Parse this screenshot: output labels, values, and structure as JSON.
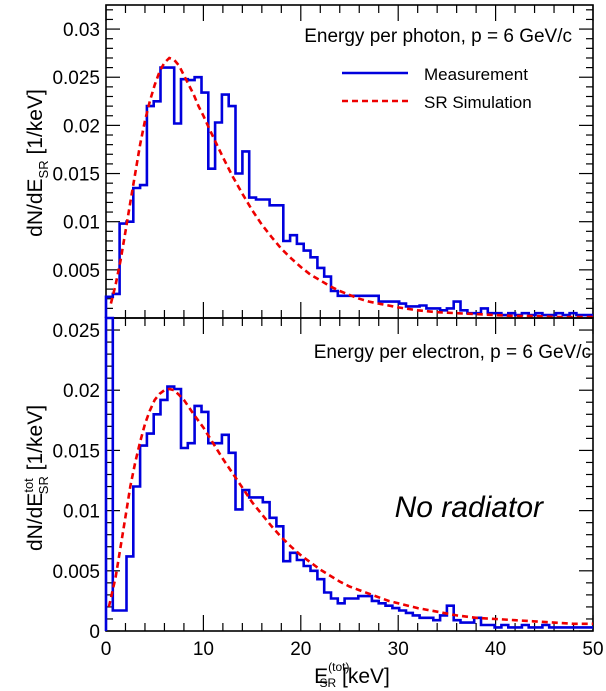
{
  "chart_data": [
    {
      "type": "line",
      "panel": "top",
      "annotation": "Energy per photon, p = 6 GeV/c",
      "ylabel_main": "dN/dE",
      "ylabel_sub": "SR",
      "ylabel_unit": " [1/keV]",
      "ylim": [
        0,
        0.0325
      ],
      "xlim": [
        0,
        50
      ],
      "yticks": [
        {
          "value": 0.005,
          "label": "0.005"
        },
        {
          "value": 0.01,
          "label": "0.01"
        },
        {
          "value": 0.015,
          "label": "0.015"
        },
        {
          "value": 0.02,
          "label": "0.02"
        },
        {
          "value": 0.025,
          "label": "0.025"
        },
        {
          "value": 0.03,
          "label": "0.03"
        }
      ],
      "legend": {
        "placement": "top-right",
        "entries": [
          {
            "label": "Measurement",
            "color": "#0000dd",
            "style": "solid"
          },
          {
            "label": "SR Simulation",
            "color": "#ee0000",
            "style": "dashed"
          }
        ]
      },
      "series": [
        {
          "name": "Measurement",
          "style": "step",
          "color": "#0000dd",
          "edges": [
            0,
            0.7,
            1.4,
            2.1,
            2.8,
            3.5,
            4.2,
            4.9,
            5.6,
            6.3,
            7,
            7.7,
            8.4,
            9.1,
            9.8,
            10.5,
            11.2,
            11.9,
            12.6,
            13.3,
            14,
            14.7,
            15.4,
            16.1,
            16.8,
            17.5,
            18.2,
            18.9,
            19.6,
            20.3,
            21,
            21.7,
            22.4,
            23.1,
            23.8,
            24.5,
            25.2,
            25.9,
            26.6,
            27.3,
            28,
            28.7,
            29.4,
            30.1,
            30.8,
            31.5,
            32.2,
            32.9,
            33.6,
            34.3,
            35,
            35.7,
            36.4,
            37.1,
            37.8,
            38.5,
            39.2,
            39.9,
            40.6,
            41.3,
            42,
            42.7,
            43.4,
            44.1,
            44.8,
            45.5,
            46.2,
            46.9,
            47.6,
            48.3,
            49,
            50
          ],
          "values": [
            0.0022,
            0.0025,
            0.0098,
            0.01,
            0.0135,
            0.0138,
            0.022,
            0.0225,
            0.026,
            0.026,
            0.0202,
            0.0248,
            0.0247,
            0.025,
            0.0234,
            0.0155,
            0.0203,
            0.0232,
            0.022,
            0.015,
            0.0173,
            0.0125,
            0.0123,
            0.0123,
            0.0117,
            0.0117,
            0.008,
            0.0086,
            0.0077,
            0.007,
            0.0063,
            0.0052,
            0.0043,
            0.0028,
            0.0023,
            0.0023,
            0.0023,
            0.0023,
            0.0023,
            0.0023,
            0.0017,
            0.0017,
            0.0017,
            0.0015,
            0.0012,
            0.0012,
            0.0013,
            0.001,
            0.001,
            0.0008,
            0.001,
            0.0017,
            0.0008,
            0.0005,
            0.0005,
            0.001,
            0.0005,
            0.0005,
            0.0003,
            0.0005,
            0.0003,
            0.0005,
            0.0003,
            0.0005,
            0.0003,
            0.0003,
            0.0005,
            0.0003,
            0.0005,
            0.0003,
            0.0003
          ]
        },
        {
          "name": "SR Simulation",
          "style": "dashed",
          "color": "#ee0000",
          "x": [
            0.5,
            1,
            1.5,
            2,
            2.5,
            3,
            3.5,
            4,
            4.5,
            5,
            5.5,
            6,
            6.5,
            7,
            7.5,
            8,
            8.5,
            9,
            9.5,
            10,
            11,
            12,
            13,
            14,
            15,
            16,
            17,
            18,
            19,
            20,
            21,
            22,
            23,
            24,
            25,
            26,
            27,
            28,
            29,
            30,
            32,
            34,
            36,
            38,
            40,
            42,
            44,
            46,
            48,
            50
          ],
          "y": [
            0.0015,
            0.0035,
            0.006,
            0.009,
            0.012,
            0.015,
            0.018,
            0.0205,
            0.0225,
            0.0242,
            0.0256,
            0.0265,
            0.027,
            0.0268,
            0.0262,
            0.0252,
            0.0242,
            0.0232,
            0.022,
            0.021,
            0.0188,
            0.0167,
            0.0147,
            0.0129,
            0.0112,
            0.0097,
            0.0084,
            0.0072,
            0.0062,
            0.0053,
            0.0045,
            0.0039,
            0.0033,
            0.0028,
            0.0024,
            0.002,
            0.0017,
            0.0015,
            0.0013,
            0.0011,
            0.0008,
            0.0006,
            0.0005,
            0.0004,
            0.0003,
            0.0002,
            0.0002,
            0.0001,
            0.0001,
            0.0001
          ]
        }
      ]
    },
    {
      "type": "line",
      "panel": "bottom",
      "annotation": "Energy per electron, p = 6 GeV/c",
      "annotation2": "No radiator",
      "ylabel_main": "dN/dE",
      "ylabel_sup": "tot",
      "ylabel_sub": "SR",
      "ylabel_unit": " [1/keV]",
      "xlabel_main": "E",
      "xlabel_sup": "(tot)",
      "xlabel_sub": "SR",
      "xlabel_unit": " [keV]",
      "ylim": [
        0,
        0.026
      ],
      "xlim": [
        0,
        50
      ],
      "yticks": [
        {
          "value": 0,
          "label": "0"
        },
        {
          "value": 0.005,
          "label": "0.005"
        },
        {
          "value": 0.01,
          "label": "0.01"
        },
        {
          "value": 0.015,
          "label": "0.015"
        },
        {
          "value": 0.02,
          "label": "0.02"
        },
        {
          "value": 0.025,
          "label": "0.025"
        }
      ],
      "xticks": [
        {
          "value": 0,
          "label": "0"
        },
        {
          "value": 10,
          "label": "10"
        },
        {
          "value": 20,
          "label": "20"
        },
        {
          "value": 30,
          "label": "30"
        },
        {
          "value": 40,
          "label": "40"
        },
        {
          "value": 50,
          "label": "50"
        }
      ],
      "series": [
        {
          "name": "Measurement",
          "style": "step",
          "color": "#0000dd",
          "edges": [
            0,
            0.7,
            1.4,
            2.1,
            2.8,
            3.5,
            4.2,
            4.9,
            5.6,
            6.3,
            7,
            7.7,
            8.4,
            9.1,
            9.8,
            10.5,
            11.2,
            11.9,
            12.6,
            13.3,
            14,
            14.7,
            15.4,
            16.1,
            16.8,
            17.5,
            18.2,
            18.9,
            19.6,
            20.3,
            21,
            21.7,
            22.4,
            23.1,
            23.8,
            24.5,
            25.2,
            25.9,
            26.6,
            27.3,
            28,
            28.7,
            29.4,
            30.1,
            30.8,
            31.5,
            32.2,
            32.9,
            33.6,
            34.3,
            35,
            35.7,
            36.4,
            37.1,
            37.8,
            38.5,
            39.2,
            39.9,
            40.6,
            41.3,
            42,
            42.7,
            43.4,
            44.1,
            44.8,
            45.5,
            46.2,
            46.9,
            47.6,
            48.3,
            49,
            50
          ],
          "values": [
            0.026,
            0.0017,
            0.0017,
            0.0062,
            0.012,
            0.0154,
            0.0164,
            0.018,
            0.0192,
            0.0203,
            0.0201,
            0.0152,
            0.0156,
            0.0187,
            0.0182,
            0.0156,
            0.0156,
            0.0163,
            0.0148,
            0.0101,
            0.0117,
            0.0111,
            0.0111,
            0.0107,
            0.0094,
            0.0087,
            0.0058,
            0.0065,
            0.0059,
            0.0054,
            0.005,
            0.0043,
            0.0032,
            0.0027,
            0.0023,
            0.0027,
            0.0027,
            0.0029,
            0.0029,
            0.0025,
            0.0023,
            0.0021,
            0.0019,
            0.0017,
            0.0015,
            0.0013,
            0.0011,
            0.0011,
            0.0009,
            0.0013,
            0.0021,
            0.0009,
            0.0007,
            0.0007,
            0.0011,
            0.0005,
            0.0005,
            0.0003,
            0.0005,
            0.0003,
            0.0003,
            0.0005,
            0.0003,
            0.0003,
            0.0005,
            0.0003,
            0.0003,
            0.0003,
            0.0003,
            0.0003,
            0.0003
          ]
        },
        {
          "name": "SR Simulation",
          "style": "dashed",
          "color": "#ee0000",
          "x": [
            0.3,
            1,
            1.5,
            2,
            2.5,
            3,
            3.5,
            4,
            4.5,
            5,
            5.5,
            6,
            6.5,
            7,
            7.5,
            8,
            8.5,
            9,
            10,
            11,
            12,
            13,
            14,
            15,
            16,
            17,
            18,
            19,
            20,
            21,
            22,
            23,
            24,
            25,
            26,
            27,
            28,
            29,
            30,
            32,
            34,
            36,
            38,
            40,
            42,
            44,
            46,
            48,
            50
          ],
          "y": [
            0.002,
            0.0045,
            0.007,
            0.0095,
            0.012,
            0.014,
            0.0157,
            0.0172,
            0.0183,
            0.0192,
            0.0197,
            0.02,
            0.0201,
            0.02,
            0.0196,
            0.0192,
            0.0186,
            0.018,
            0.0169,
            0.0156,
            0.0143,
            0.0131,
            0.0119,
            0.0107,
            0.0097,
            0.0087,
            0.0078,
            0.007,
            0.0063,
            0.0057,
            0.0051,
            0.0046,
            0.0041,
            0.0037,
            0.0034,
            0.0031,
            0.0028,
            0.0025,
            0.0023,
            0.0019,
            0.0016,
            0.0013,
            0.0011,
            0.001,
            0.0009,
            0.0008,
            0.0007,
            0.0006,
            0.0006
          ]
        }
      ]
    }
  ]
}
